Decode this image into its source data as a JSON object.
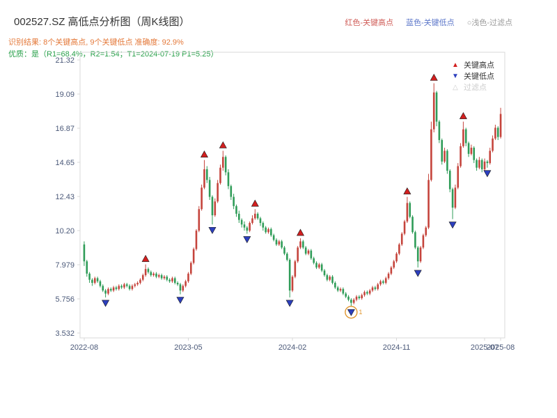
{
  "header": {
    "title": "002527.SZ 高低点分析图（周K线图）",
    "title_color": "#333333",
    "legend_inline": [
      {
        "label": "红色-关键高点",
        "color": "#cf5b56"
      },
      {
        "label": "蓝色-关键低点",
        "color": "#5b76c9"
      },
      {
        "label": "○浅色-过滤点",
        "color": "#9b9b9b"
      }
    ],
    "subtitle1": "识别结果: 8个关键高点, 9个关键低点  准确度: 92.9%",
    "subtitle1_color": "#e4793a",
    "subtitle2": "优质：是（R1=68.4%，R2=1.54；T1=2024-07-19 P1=5.25）",
    "subtitle2_color": "#2aa14b"
  },
  "legend_box": {
    "items": [
      {
        "label": "关键高点",
        "glyph": "▲",
        "glyph_color": "#d21f1f",
        "label_color": "#333333"
      },
      {
        "label": "关键低点",
        "glyph": "▼",
        "glyph_color": "#2c3fbe",
        "label_color": "#333333"
      },
      {
        "label": "过滤点",
        "glyph": "△",
        "glyph_color": "#cccccc",
        "label_color": "#cccccc"
      }
    ]
  },
  "chart_data": {
    "type": "candlestick",
    "title": "002527.SZ 高低点分析图（周K线图）",
    "ylim": [
      3.532,
      21.32
    ],
    "grid": false,
    "axis_color": "#4a5878",
    "border_color": "#d8d8d8",
    "up_color": "#c5443c",
    "down_color": "#2f9c58",
    "high_marker_color": "#d21f1f",
    "low_marker_color": "#2c3fbe",
    "filtered_color": "#e0962f",
    "y_ticks": [
      {
        "v": 3.532,
        "label": "3.532"
      },
      {
        "v": 5.756,
        "label": "5.756"
      },
      {
        "v": 7.979,
        "label": "7.979"
      },
      {
        "v": 10.2,
        "label": "10.20"
      },
      {
        "v": 12.43,
        "label": "12.43"
      },
      {
        "v": 14.65,
        "label": "14.65"
      },
      {
        "v": 16.87,
        "label": "16.87"
      },
      {
        "v": 19.09,
        "label": "19.09"
      },
      {
        "v": 21.32,
        "label": "21.32"
      }
    ],
    "x_ticks": [
      {
        "index": 0,
        "label": "2022-08"
      },
      {
        "index": 39,
        "label": "2023-05"
      },
      {
        "index": 78,
        "label": "2024-02"
      },
      {
        "index": 117,
        "label": "2024-11"
      },
      {
        "index": 150,
        "label": "2025-07"
      },
      {
        "index": 156,
        "label": "2025-08"
      }
    ],
    "candles": [
      [
        9.3,
        9.5,
        7.9,
        8.2
      ],
      [
        8.2,
        8.3,
        7.2,
        7.4
      ],
      [
        7.4,
        7.5,
        6.8,
        7.0
      ],
      [
        7.0,
        7.1,
        6.6,
        6.8
      ],
      [
        6.8,
        7.2,
        6.7,
        7.1
      ],
      [
        7.1,
        7.2,
        6.8,
        6.9
      ],
      [
        6.9,
        7.0,
        6.5,
        6.6
      ],
      [
        6.6,
        6.7,
        6.2,
        6.3
      ],
      [
        6.3,
        6.4,
        5.85,
        6.1
      ],
      [
        6.1,
        6.5,
        6.0,
        6.4
      ],
      [
        6.4,
        6.5,
        6.2,
        6.3
      ],
      [
        6.3,
        6.6,
        6.2,
        6.5
      ],
      [
        6.5,
        6.6,
        6.3,
        6.4
      ],
      [
        6.4,
        6.7,
        6.3,
        6.6
      ],
      [
        6.6,
        6.7,
        6.4,
        6.5
      ],
      [
        6.5,
        6.8,
        6.4,
        6.7
      ],
      [
        6.7,
        6.8,
        6.5,
        6.6
      ],
      [
        6.6,
        6.7,
        6.3,
        6.4
      ],
      [
        6.4,
        6.7,
        6.3,
        6.6
      ],
      [
        6.6,
        6.8,
        6.5,
        6.7
      ],
      [
        6.7,
        6.9,
        6.6,
        6.8
      ],
      [
        6.8,
        7.1,
        6.7,
        7.0
      ],
      [
        7.0,
        7.4,
        6.9,
        7.3
      ],
      [
        7.3,
        8.0,
        7.2,
        7.7
      ],
      [
        7.7,
        7.8,
        7.4,
        7.5
      ],
      [
        7.5,
        7.6,
        7.2,
        7.3
      ],
      [
        7.3,
        7.5,
        7.2,
        7.4
      ],
      [
        7.4,
        7.5,
        7.1,
        7.2
      ],
      [
        7.2,
        7.4,
        7.1,
        7.3
      ],
      [
        7.3,
        7.4,
        7.0,
        7.1
      ],
      [
        7.1,
        7.3,
        7.0,
        7.2
      ],
      [
        7.2,
        7.3,
        6.9,
        7.0
      ],
      [
        7.0,
        7.1,
        6.8,
        6.9
      ],
      [
        6.9,
        7.2,
        6.8,
        7.1
      ],
      [
        7.1,
        7.2,
        6.7,
        6.8
      ],
      [
        6.8,
        6.9,
        6.6,
        6.7
      ],
      [
        6.7,
        6.8,
        6.05,
        6.3
      ],
      [
        6.3,
        6.7,
        6.2,
        6.6
      ],
      [
        6.6,
        7.0,
        6.5,
        6.9
      ],
      [
        6.9,
        7.5,
        6.8,
        7.4
      ],
      [
        7.4,
        8.2,
        7.3,
        8.1
      ],
      [
        8.1,
        9.1,
        8.0,
        9.0
      ],
      [
        9.0,
        10.3,
        8.9,
        10.2
      ],
      [
        10.2,
        11.8,
        10.1,
        11.6
      ],
      [
        11.6,
        13.2,
        11.5,
        13.0
      ],
      [
        13.0,
        14.8,
        12.9,
        14.2
      ],
      [
        14.2,
        14.4,
        13.3,
        13.5
      ],
      [
        13.5,
        13.7,
        12.2,
        12.4
      ],
      [
        12.4,
        12.5,
        10.6,
        11.2
      ],
      [
        11.2,
        12.3,
        11.1,
        12.1
      ],
      [
        12.1,
        13.5,
        12.0,
        13.3
      ],
      [
        13.3,
        14.5,
        13.2,
        14.3
      ],
      [
        14.3,
        15.4,
        14.1,
        15.0
      ],
      [
        15.0,
        15.1,
        13.8,
        14.0
      ],
      [
        14.0,
        14.2,
        12.9,
        13.1
      ],
      [
        13.1,
        13.2,
        12.2,
        12.4
      ],
      [
        12.4,
        12.6,
        11.6,
        11.8
      ],
      [
        11.8,
        11.9,
        11.1,
        11.3
      ],
      [
        11.3,
        11.5,
        10.7,
        10.9
      ],
      [
        10.9,
        11.0,
        10.4,
        10.6
      ],
      [
        10.6,
        10.8,
        10.2,
        10.4
      ],
      [
        10.4,
        10.5,
        10.0,
        10.2
      ],
      [
        10.2,
        10.8,
        10.1,
        10.7
      ],
      [
        10.7,
        11.2,
        10.6,
        11.0
      ],
      [
        11.0,
        11.6,
        10.9,
        11.3
      ],
      [
        11.3,
        11.4,
        10.9,
        11.0
      ],
      [
        11.0,
        11.1,
        10.5,
        10.7
      ],
      [
        10.7,
        10.8,
        10.2,
        10.4
      ],
      [
        10.4,
        10.5,
        10.0,
        10.1
      ],
      [
        10.1,
        10.4,
        10.0,
        10.3
      ],
      [
        10.3,
        10.4,
        9.8,
        9.9
      ],
      [
        9.9,
        10.0,
        9.5,
        9.6
      ],
      [
        9.6,
        9.7,
        9.2,
        9.3
      ],
      [
        9.3,
        9.6,
        9.2,
        9.5
      ],
      [
        9.5,
        9.6,
        9.0,
        9.1
      ],
      [
        9.1,
        9.2,
        8.6,
        8.7
      ],
      [
        8.7,
        8.8,
        8.2,
        8.3
      ],
      [
        8.3,
        8.4,
        5.85,
        6.3
      ],
      [
        6.3,
        7.3,
        6.2,
        7.2
      ],
      [
        7.2,
        8.3,
        7.1,
        8.2
      ],
      [
        8.2,
        9.2,
        8.1,
        9.1
      ],
      [
        9.1,
        9.7,
        9.0,
        9.5
      ],
      [
        9.5,
        9.6,
        9.0,
        9.1
      ],
      [
        9.1,
        9.2,
        8.6,
        8.7
      ],
      [
        8.7,
        9.0,
        8.6,
        8.9
      ],
      [
        8.9,
        9.0,
        8.3,
        8.4
      ],
      [
        8.4,
        8.5,
        8.0,
        8.1
      ],
      [
        8.1,
        8.2,
        7.7,
        7.8
      ],
      [
        7.8,
        8.1,
        7.7,
        8.0
      ],
      [
        8.0,
        8.1,
        7.5,
        7.6
      ],
      [
        7.6,
        7.7,
        7.2,
        7.3
      ],
      [
        7.3,
        7.4,
        6.9,
        7.0
      ],
      [
        7.0,
        7.3,
        6.9,
        7.2
      ],
      [
        7.2,
        7.3,
        6.7,
        6.8
      ],
      [
        6.8,
        6.9,
        6.4,
        6.5
      ],
      [
        6.5,
        6.6,
        6.2,
        6.3
      ],
      [
        6.3,
        6.5,
        6.2,
        6.4
      ],
      [
        6.4,
        6.5,
        6.0,
        6.1
      ],
      [
        6.1,
        6.2,
        5.8,
        5.9
      ],
      [
        5.9,
        6.0,
        5.6,
        5.7
      ],
      [
        5.7,
        5.8,
        5.25,
        5.5
      ],
      [
        5.5,
        5.8,
        5.4,
        5.7
      ],
      [
        5.7,
        6.0,
        5.6,
        5.9
      ],
      [
        5.9,
        6.0,
        5.7,
        5.8
      ],
      [
        5.8,
        6.1,
        5.7,
        6.0
      ],
      [
        6.0,
        6.3,
        5.9,
        6.2
      ],
      [
        6.2,
        6.3,
        6.0,
        6.1
      ],
      [
        6.1,
        6.4,
        6.0,
        6.3
      ],
      [
        6.3,
        6.6,
        6.2,
        6.5
      ],
      [
        6.5,
        6.6,
        6.3,
        6.4
      ],
      [
        6.4,
        6.8,
        6.3,
        6.7
      ],
      [
        6.7,
        7.0,
        6.6,
        6.9
      ],
      [
        6.9,
        7.0,
        6.7,
        6.8
      ],
      [
        6.8,
        7.2,
        6.7,
        7.1
      ],
      [
        7.1,
        7.5,
        7.0,
        7.4
      ],
      [
        7.4,
        7.9,
        7.3,
        7.8
      ],
      [
        7.8,
        8.3,
        7.7,
        8.2
      ],
      [
        8.2,
        8.8,
        8.1,
        8.7
      ],
      [
        8.7,
        9.4,
        8.6,
        9.3
      ],
      [
        9.3,
        10.1,
        9.2,
        10.0
      ],
      [
        10.0,
        10.9,
        9.9,
        10.8
      ],
      [
        10.8,
        12.4,
        10.7,
        12.0
      ],
      [
        12.0,
        12.1,
        11.0,
        11.1
      ],
      [
        11.1,
        11.2,
        10.0,
        10.1
      ],
      [
        10.1,
        10.2,
        9.0,
        9.1
      ],
      [
        9.1,
        9.2,
        7.8,
        8.2
      ],
      [
        8.2,
        9.2,
        8.1,
        9.1
      ],
      [
        9.1,
        10.0,
        9.0,
        9.9
      ],
      [
        9.9,
        10.5,
        9.8,
        10.4
      ],
      [
        10.4,
        13.9,
        10.3,
        13.5
      ],
      [
        13.5,
        17.3,
        13.4,
        16.8
      ],
      [
        16.8,
        19.8,
        16.6,
        19.2
      ],
      [
        19.2,
        19.3,
        17.0,
        17.3
      ],
      [
        17.3,
        17.4,
        15.9,
        16.1
      ],
      [
        16.1,
        16.2,
        14.5,
        14.7
      ],
      [
        14.7,
        15.6,
        14.6,
        15.4
      ],
      [
        15.4,
        15.5,
        13.9,
        14.1
      ],
      [
        14.1,
        14.2,
        12.7,
        12.9
      ],
      [
        12.9,
        13.0,
        10.95,
        11.7
      ],
      [
        11.7,
        13.2,
        11.6,
        13.0
      ],
      [
        13.0,
        14.6,
        12.9,
        14.4
      ],
      [
        14.4,
        15.9,
        14.3,
        15.7
      ],
      [
        15.7,
        17.3,
        15.6,
        16.8
      ],
      [
        16.8,
        16.9,
        15.7,
        15.9
      ],
      [
        15.9,
        16.0,
        15.0,
        15.2
      ],
      [
        15.2,
        15.8,
        15.1,
        15.6
      ],
      [
        15.6,
        15.7,
        14.6,
        14.8
      ],
      [
        14.8,
        14.9,
        14.1,
        14.3
      ],
      [
        14.3,
        15.0,
        14.2,
        14.8
      ],
      [
        14.8,
        14.9,
        14.0,
        14.2
      ],
      [
        14.2,
        14.9,
        14.1,
        14.7
      ],
      [
        14.7,
        14.8,
        14.3,
        14.6
      ],
      [
        14.6,
        15.6,
        14.5,
        15.4
      ],
      [
        15.4,
        16.4,
        15.3,
        16.2
      ],
      [
        16.2,
        17.1,
        16.1,
        16.9
      ],
      [
        16.9,
        17.0,
        16.1,
        16.3
      ],
      [
        16.3,
        18.2,
        16.2,
        17.8
      ]
    ],
    "key_high_indices": [
      23,
      45,
      52,
      64,
      81,
      121,
      131,
      142
    ],
    "key_low_indices": [
      8,
      36,
      48,
      61,
      77,
      100,
      125,
      138,
      151
    ],
    "filtered_points": [
      {
        "index": 100,
        "price": 5.25,
        "label": "1"
      }
    ]
  }
}
